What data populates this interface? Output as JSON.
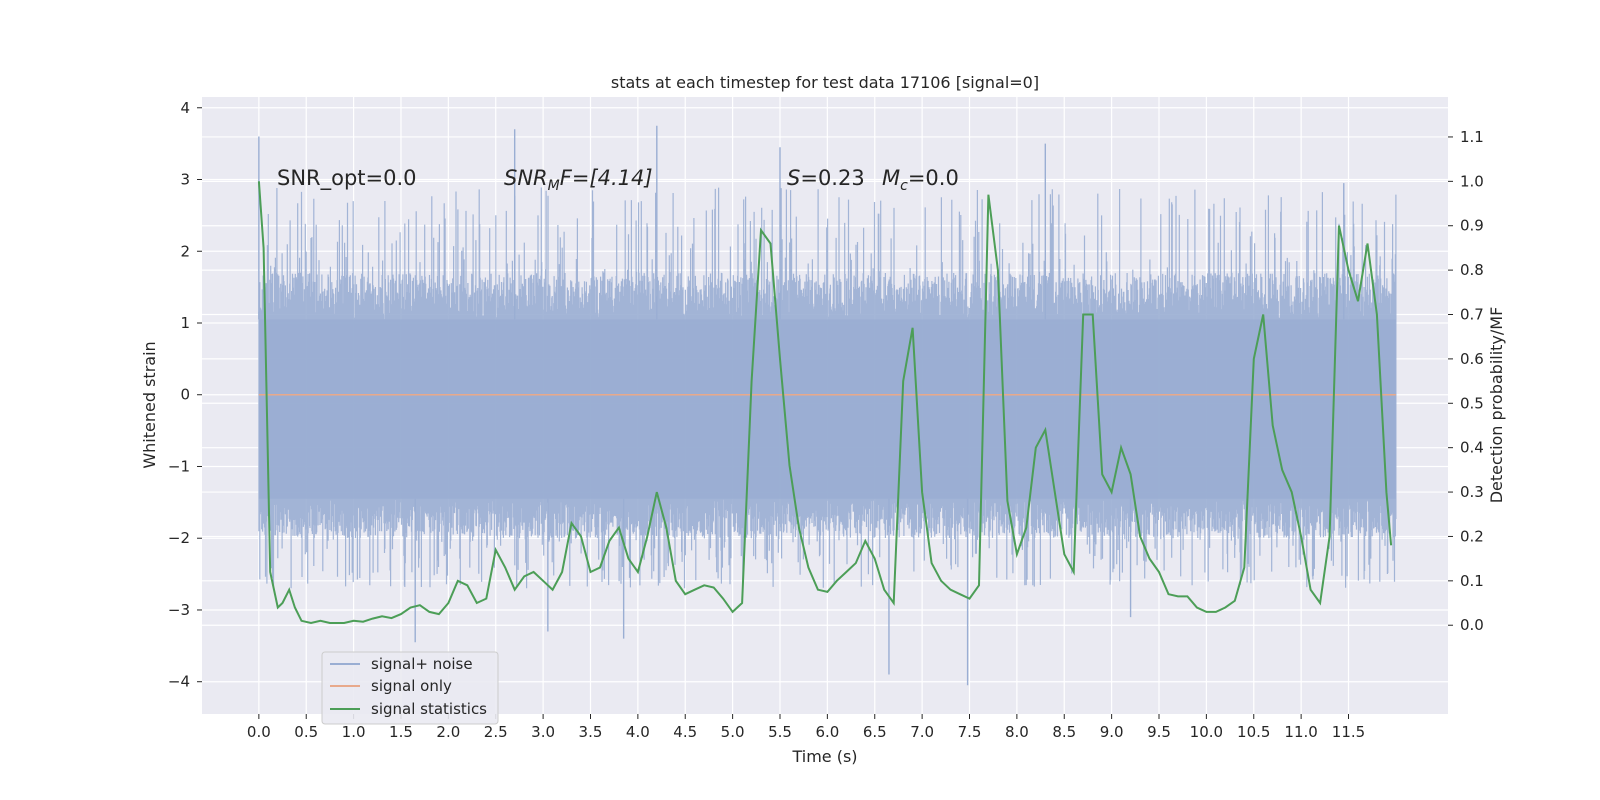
{
  "chart_data": {
    "type": "line",
    "title": "stats at each timestep for test data 17106 [signal=0]",
    "xlabel": "Time (s)",
    "ylabel_left": "Whitened strain",
    "ylabel_right": "Detection probability/MF",
    "xlim": [
      -0.6,
      12.55
    ],
    "ylim_left": [
      -4.45,
      4.15
    ],
    "ylim_right": [
      -0.2,
      1.19
    ],
    "x_ticks": [
      0.0,
      0.5,
      1.0,
      1.5,
      2.0,
      2.5,
      3.0,
      3.5,
      4.0,
      4.5,
      5.0,
      5.5,
      6.0,
      6.5,
      7.0,
      7.5,
      8.0,
      8.5,
      9.0,
      9.5,
      10.0,
      10.5,
      11.0,
      11.5
    ],
    "x_tick_labels": [
      "0.0",
      "0.5",
      "1.0",
      "1.5",
      "2.0",
      "2.5",
      "3.0",
      "3.5",
      "4.0",
      "4.5",
      "5.0",
      "5.5",
      "6.0",
      "6.5",
      "7.0",
      "7.5",
      "8.0",
      "8.5",
      "9.0",
      "9.5",
      "10.0",
      "10.5",
      "11.0",
      "11.5"
    ],
    "y_left_ticks": [
      -4,
      -3,
      -2,
      -1,
      0,
      1,
      2,
      3,
      4
    ],
    "y_left_tick_labels": [
      "−4",
      "−3",
      "−2",
      "−1",
      "0",
      "1",
      "2",
      "3",
      "4"
    ],
    "y_right_ticks": [
      0.0,
      0.1,
      0.2,
      0.3,
      0.4,
      0.5,
      0.6,
      0.7,
      0.8,
      0.9,
      1.0,
      1.1
    ],
    "y_right_tick_labels": [
      "0.0",
      "0.1",
      "0.2",
      "0.3",
      "0.4",
      "0.5",
      "0.6",
      "0.7",
      "0.8",
      "0.9",
      "1.0",
      "1.1"
    ],
    "grid": true,
    "legend_position": "lower-left",
    "annotations": {
      "snr_opt": "SNR_opt=0.0",
      "snr_mf_main": "SNR",
      "snr_mf_sub": "M",
      "snr_mf_rest": "F=[4.14]",
      "s_value": "S=0.23",
      "mc_main": "M",
      "mc_sub": "c",
      "mc_rest": "=0.0"
    },
    "series": [
      {
        "name": "signal+ noise",
        "color": "#9aaed3",
        "axis": "left",
        "x_start": 0.0,
        "x_end": 12.0,
        "envelope": {
          "core_low": -1.45,
          "core_high": 1.05,
          "band_low": -2.0,
          "band_high": 1.7,
          "spike_max": 3.75,
          "spike_min": -4.1
        }
      },
      {
        "name": "signal only",
        "color": "#e8a98b",
        "axis": "left",
        "x": [
          0.0,
          12.0
        ],
        "y": [
          0.0,
          0.0
        ]
      },
      {
        "name": "signal statistics",
        "color": "#4c9e57",
        "axis": "right",
        "x": [
          0.0,
          0.05,
          0.12,
          0.2,
          0.25,
          0.32,
          0.38,
          0.45,
          0.55,
          0.65,
          0.75,
          0.9,
          1.0,
          1.1,
          1.2,
          1.3,
          1.4,
          1.5,
          1.6,
          1.7,
          1.8,
          1.9,
          2.0,
          2.1,
          2.2,
          2.3,
          2.4,
          2.5,
          2.6,
          2.7,
          2.8,
          2.9,
          3.0,
          3.1,
          3.2,
          3.3,
          3.4,
          3.5,
          3.6,
          3.7,
          3.8,
          3.9,
          4.0,
          4.1,
          4.2,
          4.3,
          4.4,
          4.5,
          4.6,
          4.7,
          4.8,
          4.9,
          5.0,
          5.1,
          5.2,
          5.3,
          5.4,
          5.5,
          5.6,
          5.7,
          5.8,
          5.9,
          6.0,
          6.1,
          6.2,
          6.3,
          6.4,
          6.5,
          6.6,
          6.7,
          6.8,
          6.9,
          7.0,
          7.1,
          7.2,
          7.3,
          7.4,
          7.5,
          7.6,
          7.7,
          7.8,
          7.9,
          8.0,
          8.1,
          8.2,
          8.3,
          8.4,
          8.5,
          8.6,
          8.7,
          8.8,
          8.9,
          9.0,
          9.1,
          9.2,
          9.3,
          9.4,
          9.5,
          9.6,
          9.7,
          9.8,
          9.9,
          10.0,
          10.1,
          10.2,
          10.3,
          10.4,
          10.5,
          10.6,
          10.7,
          10.8,
          10.9,
          11.0,
          11.1,
          11.2,
          11.3,
          11.4,
          11.5,
          11.6,
          11.7,
          11.8,
          11.9,
          11.95
        ],
        "y": [
          1.0,
          0.85,
          0.12,
          0.04,
          0.05,
          0.08,
          0.04,
          0.01,
          0.005,
          0.01,
          0.005,
          0.005,
          0.01,
          0.008,
          0.015,
          0.02,
          0.016,
          0.025,
          0.04,
          0.045,
          0.03,
          0.025,
          0.05,
          0.1,
          0.09,
          0.05,
          0.06,
          0.17,
          0.13,
          0.08,
          0.11,
          0.12,
          0.1,
          0.08,
          0.12,
          0.23,
          0.2,
          0.12,
          0.13,
          0.19,
          0.22,
          0.15,
          0.12,
          0.2,
          0.3,
          0.22,
          0.1,
          0.07,
          0.08,
          0.09,
          0.085,
          0.06,
          0.03,
          0.05,
          0.55,
          0.89,
          0.86,
          0.6,
          0.36,
          0.22,
          0.13,
          0.08,
          0.075,
          0.1,
          0.12,
          0.14,
          0.19,
          0.15,
          0.08,
          0.05,
          0.55,
          0.67,
          0.3,
          0.14,
          0.1,
          0.08,
          0.07,
          0.06,
          0.09,
          0.97,
          0.8,
          0.28,
          0.16,
          0.22,
          0.4,
          0.44,
          0.3,
          0.16,
          0.12,
          0.7,
          0.7,
          0.34,
          0.3,
          0.4,
          0.34,
          0.2,
          0.15,
          0.12,
          0.07,
          0.065,
          0.065,
          0.04,
          0.03,
          0.03,
          0.04,
          0.055,
          0.13,
          0.6,
          0.7,
          0.45,
          0.35,
          0.3,
          0.2,
          0.08,
          0.05,
          0.2,
          0.9,
          0.8,
          0.73,
          0.86,
          0.7,
          0.3,
          0.18
        ]
      }
    ]
  }
}
